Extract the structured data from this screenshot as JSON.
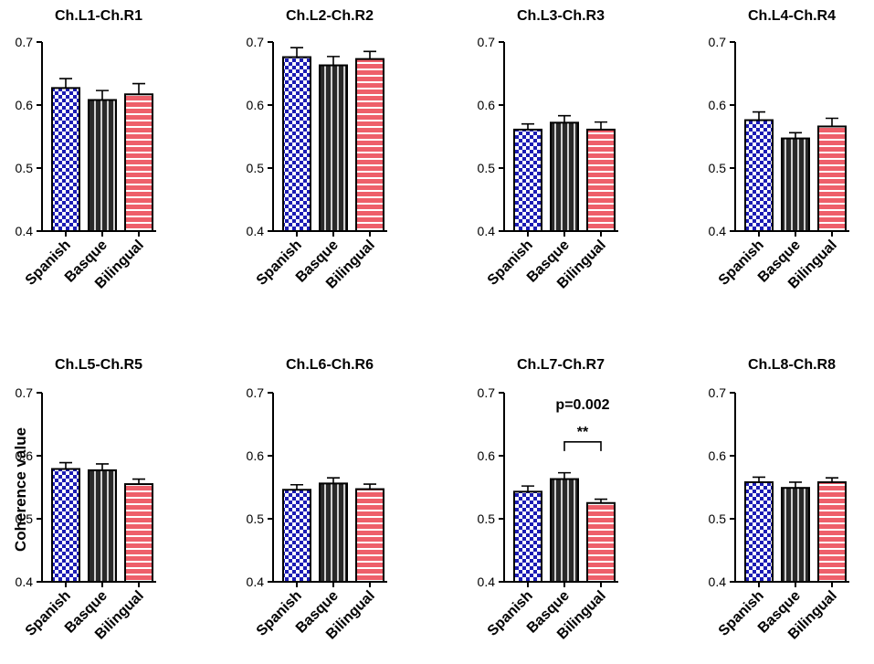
{
  "figure": {
    "ylabel": "Coherence value",
    "colors": {
      "spanish": "#1c1cb4",
      "basque": "#2a2a2a",
      "bilingual": "#ee5f6a",
      "pattern_light": "#ffffff",
      "basque_stripe": "#d0d0d0"
    }
  },
  "chart_data": [
    {
      "type": "bar",
      "title": "Ch.L1-Ch.R1",
      "categories": [
        "Spanish",
        "Basque",
        "Bilingual"
      ],
      "values": [
        0.627,
        0.608,
        0.617
      ],
      "errors": [
        0.015,
        0.015,
        0.017
      ],
      "ylim": [
        0.4,
        0.7
      ],
      "yticks": [
        "0.4",
        "0.5",
        "0.6",
        "0.7"
      ]
    },
    {
      "type": "bar",
      "title": "Ch.L2-Ch.R2",
      "categories": [
        "Spanish",
        "Basque",
        "Bilingual"
      ],
      "values": [
        0.676,
        0.663,
        0.673
      ],
      "errors": [
        0.015,
        0.014,
        0.012
      ],
      "ylim": [
        0.4,
        0.7
      ],
      "yticks": [
        "0.4",
        "0.5",
        "0.6",
        "0.7"
      ]
    },
    {
      "type": "bar",
      "title": "Ch.L3-Ch.R3",
      "categories": [
        "Spanish",
        "Basque",
        "Bilingual"
      ],
      "values": [
        0.561,
        0.572,
        0.561
      ],
      "errors": [
        0.009,
        0.011,
        0.012
      ],
      "ylim": [
        0.4,
        0.7
      ],
      "yticks": [
        "0.4",
        "0.5",
        "0.6",
        "0.7"
      ]
    },
    {
      "type": "bar",
      "title": "Ch.L4-Ch.R4",
      "categories": [
        "Spanish",
        "Basque",
        "Bilingual"
      ],
      "values": [
        0.576,
        0.547,
        0.566
      ],
      "errors": [
        0.013,
        0.009,
        0.013
      ],
      "ylim": [
        0.4,
        0.7
      ],
      "yticks": [
        "0.4",
        "0.5",
        "0.6",
        "0.7"
      ]
    },
    {
      "type": "bar",
      "title": "Ch.L5-Ch.R5",
      "categories": [
        "Spanish",
        "Basque",
        "Bilingual"
      ],
      "values": [
        0.579,
        0.577,
        0.555
      ],
      "errors": [
        0.01,
        0.01,
        0.008
      ],
      "ylim": [
        0.4,
        0.7
      ],
      "yticks": [
        "0.4",
        "0.5",
        "0.6",
        "0.7"
      ]
    },
    {
      "type": "bar",
      "title": "Ch.L6-Ch.R6",
      "categories": [
        "Spanish",
        "Basque",
        "Bilingual"
      ],
      "values": [
        0.546,
        0.556,
        0.547
      ],
      "errors": [
        0.008,
        0.009,
        0.008
      ],
      "ylim": [
        0.4,
        0.7
      ],
      "yticks": [
        "0.4",
        "0.5",
        "0.6",
        "0.7"
      ]
    },
    {
      "type": "bar",
      "title": "Ch.L7-Ch.R7",
      "categories": [
        "Spanish",
        "Basque",
        "Bilingual"
      ],
      "values": [
        0.543,
        0.563,
        0.525
      ],
      "errors": [
        0.009,
        0.01,
        0.006
      ],
      "ylim": [
        0.4,
        0.7
      ],
      "yticks": [
        "0.4",
        "0.5",
        "0.6",
        "0.7"
      ],
      "significance": {
        "from": 1,
        "to": 2,
        "y": 0.622,
        "stars": "**",
        "label": "p=0.002"
      }
    },
    {
      "type": "bar",
      "title": "Ch.L8-Ch.R8",
      "categories": [
        "Spanish",
        "Basque",
        "Bilingual"
      ],
      "values": [
        0.558,
        0.549,
        0.558
      ],
      "errors": [
        0.008,
        0.009,
        0.007
      ],
      "ylim": [
        0.4,
        0.7
      ],
      "yticks": [
        "0.4",
        "0.5",
        "0.6",
        "0.7"
      ]
    }
  ]
}
